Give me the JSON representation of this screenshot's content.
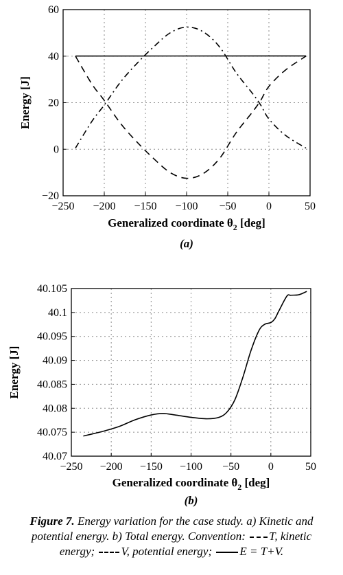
{
  "chart_data": [
    {
      "type": "line",
      "xlabel": "Generalized coordinate θ",
      "xlabel_sub": "2",
      "xlabel_tail": " [deg]",
      "ylabel": "Energy [J]",
      "panel_label": "(a)",
      "xlim": [
        -250,
        50
      ],
      "ylim": [
        -20,
        60
      ],
      "xticks": [
        -250,
        -200,
        -150,
        -100,
        -50,
        0,
        50
      ],
      "yticks": [
        -20,
        0,
        20,
        40,
        60
      ],
      "xtick_labels": [
        "−250",
        "−200",
        "−150",
        "−100",
        "−50",
        "0",
        "50"
      ],
      "ytick_labels": [
        "−20",
        "0",
        "20",
        "40",
        "60"
      ],
      "grid": true,
      "series": [
        {
          "style": "dashed",
          "x": [
            -235,
            -215,
            -200,
            -180,
            -160,
            -140,
            -120,
            -100,
            -80,
            -60,
            -40,
            -20,
            -10,
            0,
            20,
            45
          ],
          "y": [
            40,
            28,
            21,
            11,
            3,
            -4,
            -10,
            -12.5,
            -10.5,
            -4,
            7,
            16,
            21,
            27,
            34,
            40
          ]
        },
        {
          "style": "dashdot",
          "x": [
            -235,
            -215,
            -200,
            -180,
            -160,
            -140,
            -120,
            -100,
            -80,
            -60,
            -40,
            -20,
            -10,
            0,
            20,
            45
          ],
          "y": [
            0.5,
            12,
            19,
            29,
            37,
            44,
            50,
            52.5,
            50.5,
            44,
            33,
            24,
            19,
            13,
            6,
            0.5
          ]
        },
        {
          "style": "solid",
          "x": [
            -235,
            45
          ],
          "y": [
            40.05,
            40.1
          ]
        }
      ]
    },
    {
      "type": "line",
      "xlabel": "Generalized coordinate θ",
      "xlabel_sub": "2",
      "xlabel_tail": " [deg]",
      "ylabel": "Energy [J]",
      "panel_label": "(b)",
      "xlim": [
        -250,
        50
      ],
      "ylim": [
        40.07,
        40.105
      ],
      "xticks": [
        -250,
        -200,
        -150,
        -100,
        -50,
        0,
        50
      ],
      "yticks": [
        40.07,
        40.075,
        40.08,
        40.085,
        40.09,
        40.095,
        40.1,
        40.105
      ],
      "xtick_labels": [
        "−250",
        "−200",
        "−150",
        "−100",
        "−50",
        "0",
        "50"
      ],
      "ytick_labels": [
        "40.07",
        "40.075",
        "40.08",
        "40.085",
        "40.09",
        "40.095",
        "40.1",
        "40.105"
      ],
      "grid": true,
      "series": [
        {
          "style": "solid",
          "x": [
            -235,
            -210,
            -190,
            -170,
            -150,
            -135,
            -120,
            -100,
            -80,
            -65,
            -55,
            -45,
            -35,
            -25,
            -15,
            -8,
            0,
            5,
            10,
            20,
            25,
            35,
            45
          ],
          "y": [
            40.0742,
            40.0752,
            40.0762,
            40.0776,
            40.0786,
            40.0789,
            40.0786,
            40.0781,
            40.0778,
            40.0781,
            40.0792,
            40.0818,
            40.0865,
            40.092,
            40.0962,
            40.0975,
            40.0979,
            40.0987,
            40.1003,
            40.1034,
            40.1036,
            40.1037,
            40.1044
          ]
        }
      ]
    }
  ],
  "caption": {
    "fig_label": "Figure 7.",
    "text_1": " Energy variation for the case study. a) Kinetic and potential energy. b) Total energy. Convention: ",
    "t_label": "T,",
    "t_desc": " kinetic energy; ",
    "v_label": "V,",
    "v_desc": " potential energy; ",
    "e_label": "E = T+V."
  }
}
